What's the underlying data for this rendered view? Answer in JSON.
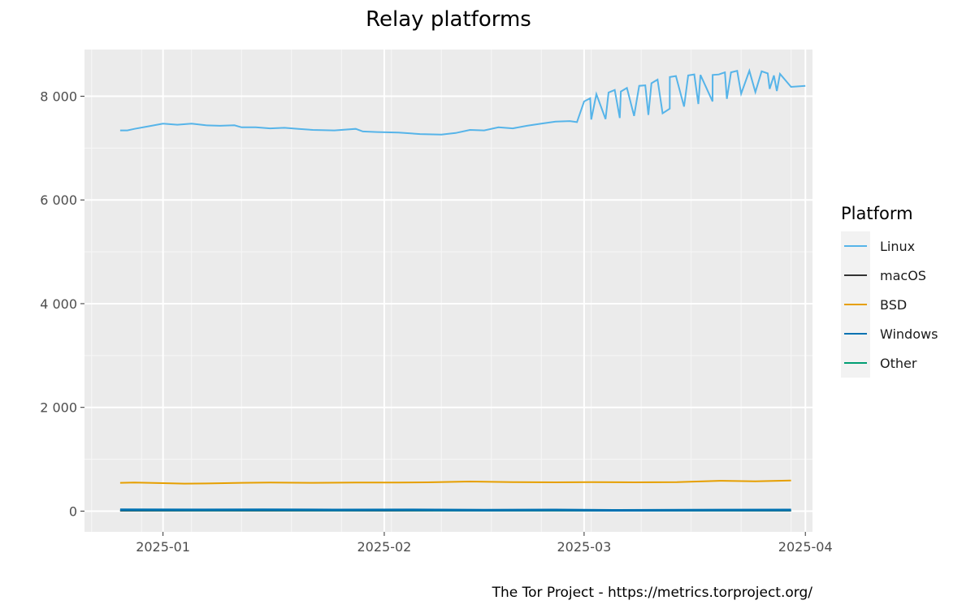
{
  "chart_data": {
    "type": "line",
    "title": "Relay platforms",
    "xlabel": "",
    "ylabel": "",
    "ylim": [
      -400,
      8900
    ],
    "xlim": [
      "2024-12-21",
      "2025-04-02"
    ],
    "x_ticks": [
      "2025-01-01",
      "2025-02-01",
      "2025-03-01",
      "2025-04-01"
    ],
    "x_tick_labels": [
      "2025-01",
      "2025-02",
      "2025-03",
      "2025-04"
    ],
    "y_ticks": [
      0,
      2000,
      4000,
      6000,
      8000
    ],
    "y_tick_labels": [
      "0",
      "2 000",
      "4 000",
      "6 000",
      "8 000"
    ],
    "grid": true,
    "legend": {
      "title": "Platform",
      "position": "right"
    },
    "series": [
      {
        "name": "Linux",
        "color": "#56B4E9",
        "points": [
          [
            "2024-12-26",
            7340
          ],
          [
            "2024-12-27",
            7340
          ],
          [
            "2024-12-28",
            7370
          ],
          [
            "2024-12-30",
            7420
          ],
          [
            "2025-01-01",
            7470
          ],
          [
            "2025-01-03",
            7450
          ],
          [
            "2025-01-05",
            7470
          ],
          [
            "2025-01-07",
            7440
          ],
          [
            "2025-01-09",
            7430
          ],
          [
            "2025-01-11",
            7440
          ],
          [
            "2025-01-12",
            7400
          ],
          [
            "2025-01-14",
            7400
          ],
          [
            "2025-01-16",
            7380
          ],
          [
            "2025-01-18",
            7390
          ],
          [
            "2025-01-20",
            7370
          ],
          [
            "2025-01-22",
            7350
          ],
          [
            "2025-01-25",
            7340
          ],
          [
            "2025-01-28",
            7370
          ],
          [
            "2025-01-29",
            7320
          ],
          [
            "2025-01-31",
            7310
          ],
          [
            "2025-02-03",
            7300
          ],
          [
            "2025-02-06",
            7270
          ],
          [
            "2025-02-09",
            7260
          ],
          [
            "2025-02-11",
            7290
          ],
          [
            "2025-02-13",
            7350
          ],
          [
            "2025-02-15",
            7340
          ],
          [
            "2025-02-17",
            7400
          ],
          [
            "2025-02-19",
            7380
          ],
          [
            "2025-02-21",
            7430
          ],
          [
            "2025-02-23",
            7470
          ],
          [
            "2025-02-25",
            7510
          ],
          [
            "2025-02-27",
            7520
          ],
          [
            "2025-02-28",
            7500
          ],
          [
            "2025-03-02",
            7550
          ],
          [
            "2025-03-04",
            7560
          ],
          [
            "2025-03-06",
            7580
          ],
          [
            "2025-03-08",
            7620
          ],
          [
            "2025-03-10",
            7640
          ],
          [
            "2025-03-12",
            7670
          ],
          [
            "2025-03-13",
            7760
          ],
          [
            "2025-03-15",
            7800
          ],
          [
            "2025-03-17",
            7850
          ],
          [
            "2025-03-19",
            7900
          ],
          [
            "2025-03-21",
            7950
          ],
          [
            "2025-03-23",
            8050
          ],
          [
            "2025-03-25",
            8080
          ],
          [
            "2025-03-27",
            8140
          ],
          [
            "2025-03-28",
            8100
          ],
          [
            "2025-03-30",
            8180
          ],
          [
            "2025-04-01",
            8200
          ]
        ],
        "points_b": [
          [
            "2025-03-01",
            7900
          ],
          [
            "2025-03-02",
            7960
          ],
          [
            "2025-03-03",
            8040
          ],
          [
            "2025-03-05",
            8070
          ],
          [
            "2025-03-06",
            8120
          ],
          [
            "2025-03-07",
            8090
          ],
          [
            "2025-03-08",
            8160
          ],
          [
            "2025-03-10",
            8200
          ],
          [
            "2025-03-11",
            8210
          ],
          [
            "2025-03-12",
            8250
          ],
          [
            "2025-03-13",
            8320
          ],
          [
            "2025-03-15",
            8370
          ],
          [
            "2025-03-16",
            8390
          ],
          [
            "2025-03-18",
            8400
          ],
          [
            "2025-03-19",
            8420
          ],
          [
            "2025-03-20",
            8410
          ],
          [
            "2025-03-22",
            8410
          ],
          [
            "2025-03-23",
            8420
          ],
          [
            "2025-03-24",
            8460
          ],
          [
            "2025-03-25",
            8460
          ],
          [
            "2025-03-26",
            8490
          ],
          [
            "2025-03-28",
            8490
          ],
          [
            "2025-03-30",
            8480
          ],
          [
            "2025-03-31",
            8440
          ],
          [
            "2025-04-01",
            8400
          ],
          [
            "2025-04-02",
            8430
          ]
        ]
      },
      {
        "name": "macOS",
        "color": "#333333",
        "points": [
          [
            "2024-12-26",
            12
          ],
          [
            "2025-01-15",
            14
          ],
          [
            "2025-02-01",
            12
          ],
          [
            "2025-03-01",
            13
          ],
          [
            "2025-03-30",
            12
          ]
        ]
      },
      {
        "name": "BSD",
        "color": "#E69F00",
        "points": [
          [
            "2024-12-26",
            545
          ],
          [
            "2024-12-28",
            550
          ],
          [
            "2025-01-01",
            540
          ],
          [
            "2025-01-04",
            530
          ],
          [
            "2025-01-08",
            535
          ],
          [
            "2025-01-12",
            545
          ],
          [
            "2025-01-16",
            550
          ],
          [
            "2025-01-22",
            545
          ],
          [
            "2025-01-28",
            550
          ],
          [
            "2025-02-03",
            550
          ],
          [
            "2025-02-07",
            555
          ],
          [
            "2025-02-13",
            570
          ],
          [
            "2025-02-19",
            560
          ],
          [
            "2025-02-25",
            555
          ],
          [
            "2025-03-02",
            560
          ],
          [
            "2025-03-08",
            555
          ],
          [
            "2025-03-14",
            560
          ],
          [
            "2025-03-20",
            585
          ],
          [
            "2025-03-25",
            575
          ],
          [
            "2025-03-30",
            590
          ]
        ]
      },
      {
        "name": "Windows",
        "color": "#0072B2",
        "points": [
          [
            "2024-12-26",
            28
          ],
          [
            "2025-01-05",
            24
          ],
          [
            "2025-01-15",
            26
          ],
          [
            "2025-01-25",
            22
          ],
          [
            "2025-02-05",
            24
          ],
          [
            "2025-02-15",
            20
          ],
          [
            "2025-02-25",
            22
          ],
          [
            "2025-03-05",
            15
          ],
          [
            "2025-03-15",
            20
          ],
          [
            "2025-03-30",
            22
          ]
        ]
      },
      {
        "name": "Other",
        "color": "#009E73",
        "points": [
          [
            "2024-12-26",
            8
          ],
          [
            "2025-02-01",
            9
          ],
          [
            "2025-03-30",
            8
          ]
        ]
      }
    ],
    "caption": "The Tor Project - https://metrics.torproject.org/"
  }
}
